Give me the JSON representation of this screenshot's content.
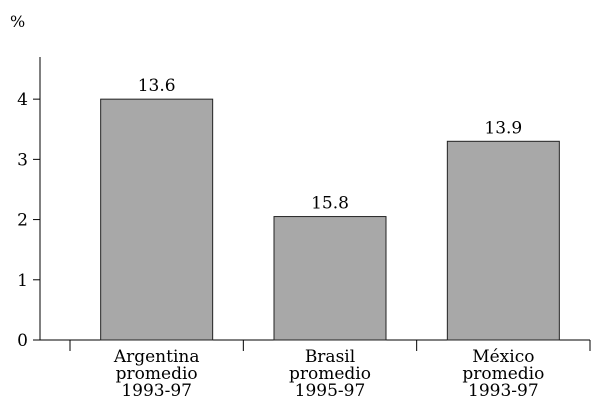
{
  "chart_data": {
    "type": "bar",
    "ylabel": "%",
    "ylim": [
      0,
      4.7
    ],
    "yticks": [
      0,
      1,
      2,
      3,
      4
    ],
    "categories": [
      [
        "Argentina",
        "promedio",
        "1993-97"
      ],
      [
        "Brasil",
        "promedio",
        "1995-97"
      ],
      [
        "México",
        "promedio",
        "1993-97"
      ]
    ],
    "values": [
      4.0,
      2.05,
      3.3
    ],
    "data_labels": [
      "13.6",
      "15.8",
      "13.9"
    ],
    "bar_color": "#a8a8a8",
    "bar_stroke": "#222222",
    "grid": false,
    "legend": "none"
  }
}
